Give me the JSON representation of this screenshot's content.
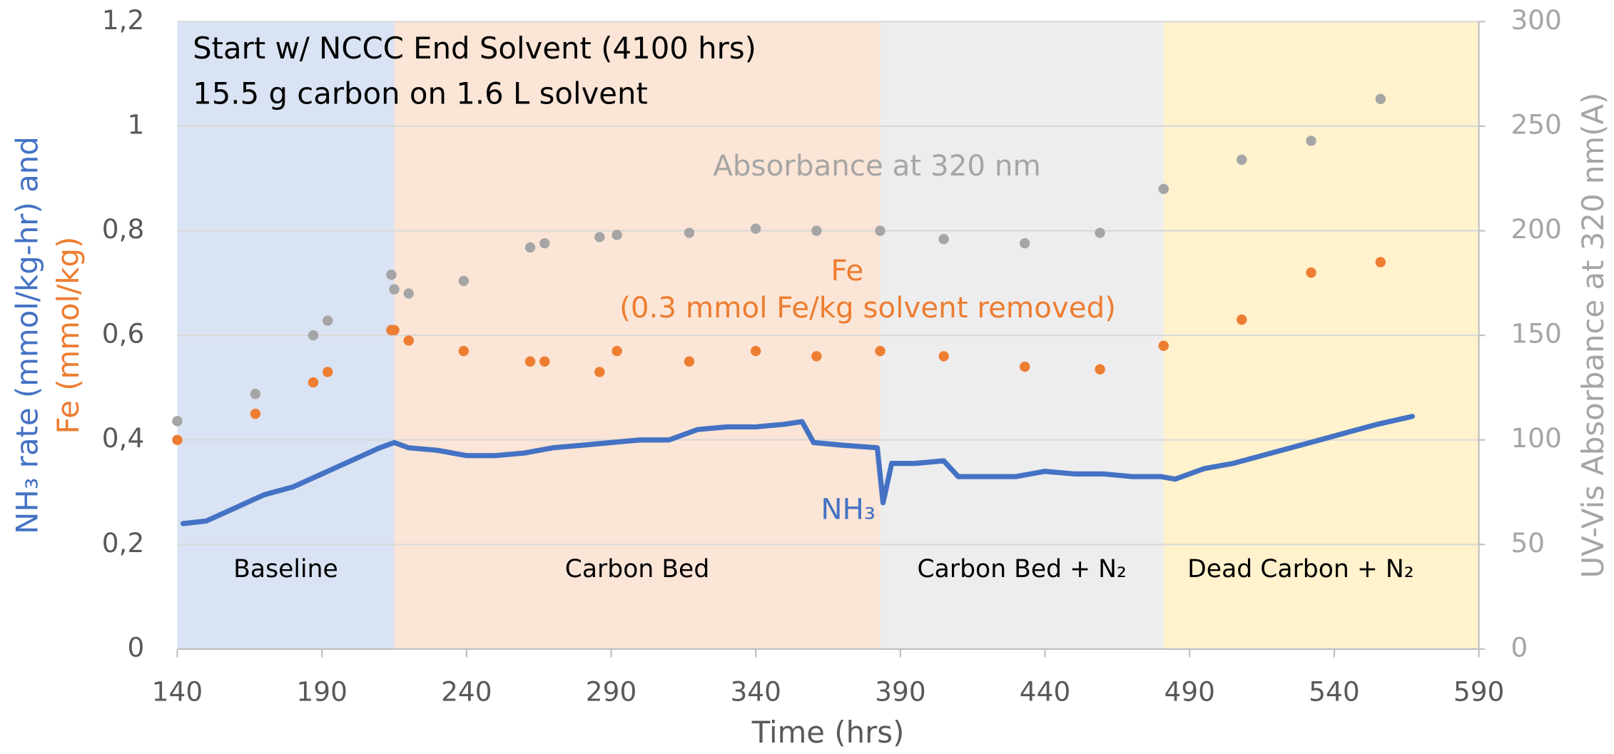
{
  "chart_data": {
    "type": "scatter",
    "x_label": "Time (hrs)",
    "y_label_line1": "NH₃ rate (mmol/kg-hr) and",
    "y_label_line2": "Fe (mmol/kg)",
    "y2_label": "UV-Vis Absorbance at 320 nm(A)",
    "annotations": [
      "Start w/ NCCC End Solvent (4100 hrs)",
      "15.5 g carbon on 1.6 L solvent",
      "(0.3 mmol Fe/kg solvent removed)"
    ],
    "regions": [
      {
        "label": "Baseline",
        "start": 140,
        "end": 215,
        "color": "#dae3f3"
      },
      {
        "label": "Carbon Bed",
        "start": 215,
        "end": 383,
        "color": "#fbe5d6"
      },
      {
        "label": "Carbon Bed + N₂",
        "start": 383,
        "end": 481,
        "color": "#ededed"
      },
      {
        "label": "Dead Carbon + N₂",
        "start": 481,
        "end": 590,
        "color": "#fff2cc"
      }
    ],
    "xlim": [
      140,
      590
    ],
    "xticks": [
      140,
      190,
      240,
      290,
      340,
      390,
      440,
      490,
      540,
      590
    ],
    "ylim": [
      0,
      1.2
    ],
    "yticks": [
      0,
      {
        "value": 0.2,
        "label": "0,2"
      },
      {
        "value": 0.4,
        "label": "0,4"
      },
      {
        "value": 0.6,
        "label": "0,6"
      },
      {
        "value": 0.8,
        "label": "0,8"
      },
      1,
      {
        "value": 1.2,
        "label": "1,2"
      }
    ],
    "y2lim": [
      0,
      300
    ],
    "y2ticks": [
      0,
      50,
      100,
      150,
      200,
      250,
      300
    ],
    "grid": true,
    "series": [
      {
        "name": "NH₃",
        "color": "#4472c4",
        "style": "line",
        "x": [
          142,
          150,
          160,
          170,
          180,
          190,
          200,
          210,
          215,
          220,
          230,
          240,
          250,
          260,
          270,
          280,
          290,
          300,
          310,
          320,
          330,
          340,
          350,
          356,
          360,
          370,
          382,
          384,
          387,
          395,
          405,
          410,
          420,
          430,
          440,
          450,
          460,
          470,
          480,
          485,
          495,
          505,
          515,
          525,
          535,
          545,
          555,
          567
        ],
        "values": [
          0.24,
          0.245,
          0.27,
          0.295,
          0.31,
          0.335,
          0.36,
          0.385,
          0.395,
          0.385,
          0.38,
          0.37,
          0.37,
          0.375,
          0.385,
          0.39,
          0.395,
          0.4,
          0.4,
          0.42,
          0.425,
          0.425,
          0.43,
          0.435,
          0.395,
          0.39,
          0.385,
          0.28,
          0.355,
          0.355,
          0.36,
          0.33,
          0.33,
          0.33,
          0.34,
          0.335,
          0.335,
          0.33,
          0.33,
          0.325,
          0.345,
          0.355,
          0.37,
          0.385,
          0.4,
          0.415,
          0.43,
          0.445
        ]
      },
      {
        "name": "Fe",
        "color": "#ed7d31",
        "style": "marker",
        "x": [
          140,
          167,
          187,
          192,
          214,
          215,
          220,
          239,
          262,
          267,
          286,
          292,
          317,
          340,
          361,
          383,
          405,
          433,
          459,
          481,
          508,
          532,
          556
        ],
        "values": [
          0.4,
          0.45,
          0.51,
          0.53,
          0.61,
          0.61,
          0.59,
          0.57,
          0.55,
          0.55,
          0.53,
          0.57,
          0.55,
          0.57,
          0.56,
          0.57,
          0.56,
          0.54,
          0.535,
          0.58,
          0.63,
          0.72,
          0.74
        ]
      },
      {
        "name": "Absorbance at 320 nm",
        "color": "#a5a5a5",
        "style": "marker",
        "axis": "y2",
        "x": [
          140,
          167,
          187,
          192,
          214,
          215,
          220,
          239,
          262,
          267,
          286,
          292,
          317,
          340,
          361,
          383,
          405,
          433,
          459,
          481,
          508,
          532,
          556
        ],
        "values": [
          109,
          122,
          150,
          157,
          179,
          172,
          170,
          176,
          192,
          194,
          197,
          198,
          199,
          201,
          200,
          200,
          196,
          194,
          199,
          220,
          234,
          243,
          263
        ]
      }
    ]
  }
}
